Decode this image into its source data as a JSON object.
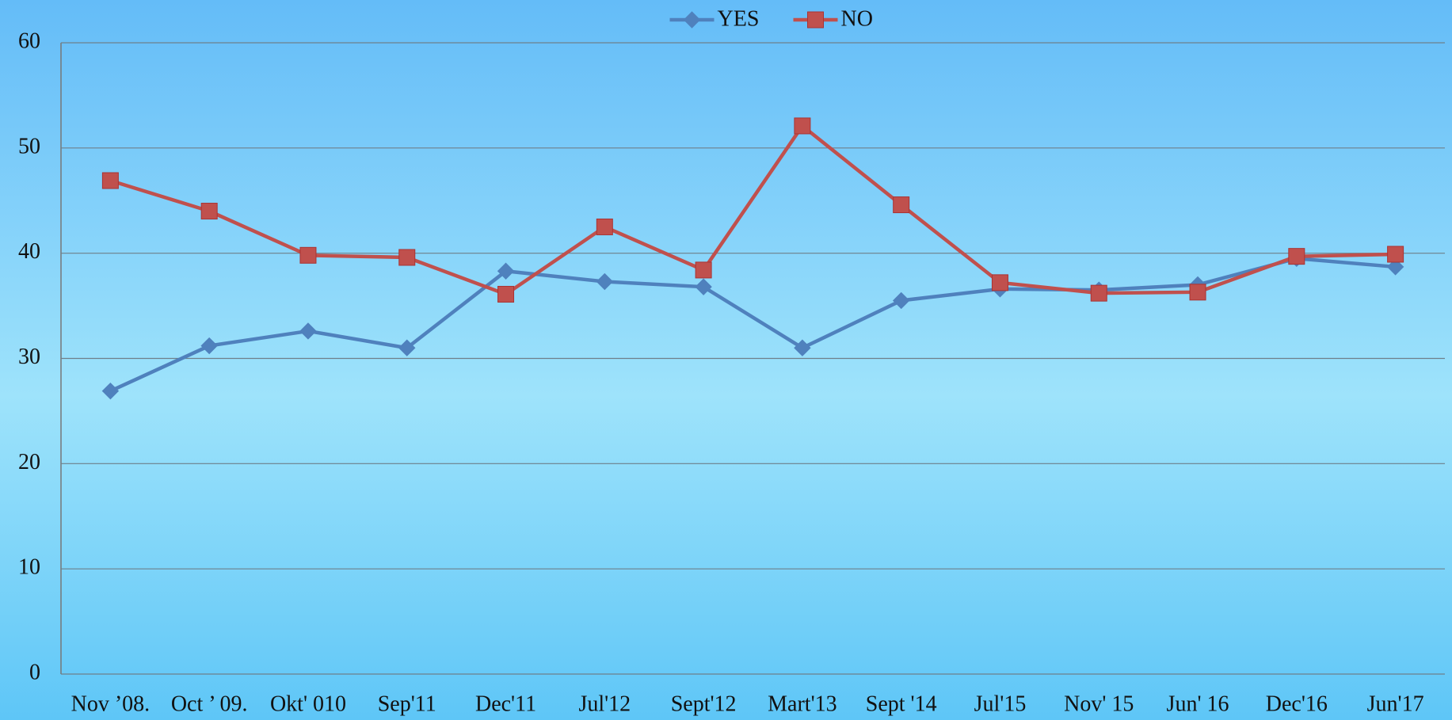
{
  "chart_data": {
    "type": "line",
    "categories": [
      "Nov ’08.",
      "Oct ’ 09.",
      "Okt' 010",
      "Sep'11",
      "Dec'11",
      "Jul'12",
      "Sept'12",
      "Mart'13",
      "Sept '14",
      "Jul'15",
      "Nov' 15",
      "Jun' 16",
      "Dec'16",
      "Jun'17"
    ],
    "series": [
      {
        "name": "YES",
        "color": "#4f81bd",
        "marker": "diamond",
        "values": [
          26.9,
          31.2,
          32.6,
          31.0,
          38.3,
          37.3,
          36.8,
          31.0,
          35.5,
          36.6,
          36.5,
          37.0,
          39.5,
          38.7
        ]
      },
      {
        "name": "NO",
        "color": "#c0504d",
        "marker": "square",
        "values": [
          46.9,
          44.0,
          39.8,
          39.6,
          36.1,
          42.5,
          38.4,
          52.1,
          44.6,
          37.2,
          36.2,
          36.3,
          39.7,
          39.9
        ]
      }
    ],
    "ylim": [
      0,
      60
    ],
    "yticks": [
      0,
      10,
      20,
      30,
      40,
      50,
      60
    ],
    "grid": true,
    "legend": "top"
  }
}
